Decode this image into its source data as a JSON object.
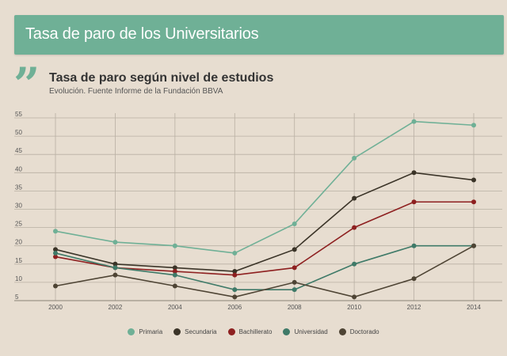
{
  "banner": {
    "title": "Tasa de paro de los Universitarios"
  },
  "quote_icon": "quote-icon",
  "quote_glyph": "”",
  "chart_data": {
    "type": "line",
    "title": "Tasa de paro según nivel de estudios",
    "subtitle": "Evolución. Fuente Informe de la Fundación BBVA",
    "xlabel": "",
    "ylabel": "",
    "x": [
      2000,
      2002,
      2004,
      2006,
      2008,
      2010,
      2012,
      2014
    ],
    "y_ticks": [
      5,
      10,
      15,
      20,
      25,
      30,
      35,
      40,
      45,
      50,
      55
    ],
    "ylim": [
      5,
      55
    ],
    "grid": true,
    "legend_position": "bottom",
    "series": [
      {
        "name": "Primaria",
        "color": "#6fb096",
        "values": [
          24,
          21,
          20,
          18,
          26,
          44,
          54,
          53
        ]
      },
      {
        "name": "Secundaria",
        "color": "#3b3428",
        "values": [
          19,
          15,
          14,
          13,
          19,
          33,
          40,
          38
        ]
      },
      {
        "name": "Bachillerato",
        "color": "#8e2020",
        "values": [
          17,
          14,
          13,
          12,
          14,
          25,
          32,
          32
        ]
      },
      {
        "name": "Universidad",
        "color": "#3f7a68",
        "values": [
          18,
          14,
          12,
          8,
          8,
          15,
          20,
          20
        ]
      },
      {
        "name": "Doctorado",
        "color": "#4e4434",
        "values": [
          9,
          12,
          9,
          6,
          10,
          6,
          11,
          20
        ]
      }
    ]
  }
}
